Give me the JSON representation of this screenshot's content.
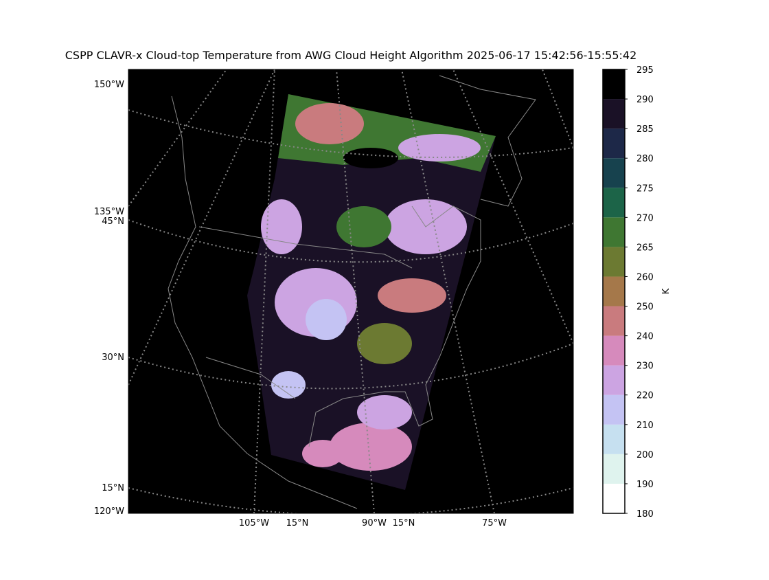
{
  "title": "CSPP CLAVR-x Cloud-top Temperature from AWG Cloud Height Algorithm 2025-06-17 15:42:56-15:55:42",
  "map": {
    "left_labels": [
      "150°W",
      "135°W",
      "45°N",
      "30°N",
      "15°N",
      "120°W"
    ],
    "bottom_labels": [
      "105°W",
      "15°N",
      "90°W",
      "15°N",
      "75°W"
    ]
  },
  "colorbar": {
    "label": "K",
    "ticks": [
      180,
      190,
      200,
      210,
      220,
      230,
      240,
      250,
      260,
      265,
      270,
      275,
      280,
      285,
      290,
      295
    ],
    "colors": [
      "#ffffff",
      "#dff3ee",
      "#c6e0f0",
      "#c4c3f3",
      "#cca4e2",
      "#d68abc",
      "#c97b7e",
      "#a5784a",
      "#6c7a32",
      "#3f7732",
      "#1c6448",
      "#17424e",
      "#1d2848",
      "#1a1126",
      "#000000"
    ]
  }
}
